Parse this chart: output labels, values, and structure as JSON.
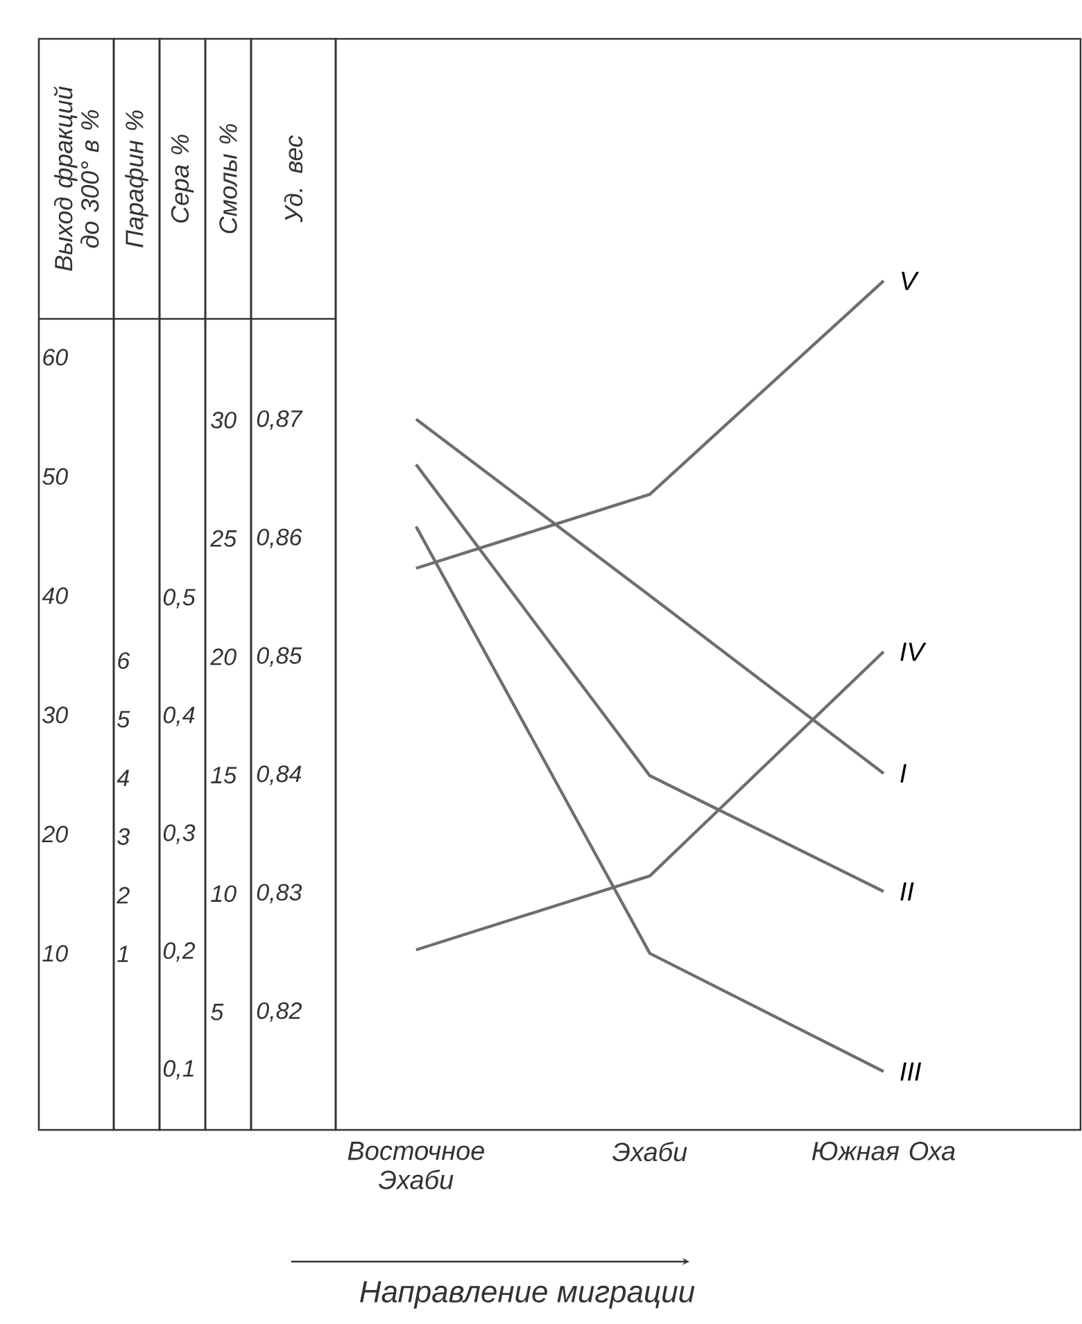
{
  "chart_data": {
    "type": "line",
    "categories": [
      "Восточное Эхаби",
      "Эхаби",
      "Южная Оха"
    ],
    "xlabel": "Направление миграции",
    "ylabel": "Выход фракций до 300° в %",
    "y2label": "Парафин %",
    "y3label": "Сера %",
    "annotations": [
      "Смолы %",
      "Уд. вес",
      "5",
      "10",
      "15",
      "20",
      "25",
      "30",
      "0,82",
      "0,83",
      "0,84",
      "0,85",
      "0,86",
      "0,87"
    ],
    "ylim": [
      -4.8,
      86.7
    ],
    "yticks": [
      10,
      20,
      30,
      40,
      50,
      60
    ],
    "y2lim": [
      -2.0,
      16.6
    ],
    "y2ticks": [
      1,
      2,
      3,
      4,
      5,
      6
    ],
    "y3lim": [
      0.049,
      0.975
    ],
    "y3ticks": [
      {
        "value": 0.1,
        "label": "0,1"
      },
      {
        "value": 0.2,
        "label": "0,2"
      },
      {
        "value": 0.3,
        "label": "0,3"
      },
      {
        "value": 0.4,
        "label": "0,4"
      },
      {
        "value": 0.5,
        "label": "0,5"
      }
    ],
    "marker": "none",
    "series": [
      {
        "name": "I",
        "color": "#6e6e6e",
        "values": [
          54.8,
          40,
          25.1
        ]
      },
      {
        "name": "II",
        "color": "#6e6e6e",
        "values": [
          51.0,
          24.9,
          15.2
        ]
      },
      {
        "name": "III",
        "color": "#6e6e6e",
        "values": [
          45.8,
          10.0,
          0.1
        ]
      },
      {
        "name": "IV",
        "color": "#6e6e6e",
        "values": [
          10.3,
          16.5,
          35.3
        ]
      },
      {
        "name": "V",
        "color": "#6e6e6e",
        "values": [
          42.3,
          48.5,
          66.4
        ]
      }
    ]
  }
}
